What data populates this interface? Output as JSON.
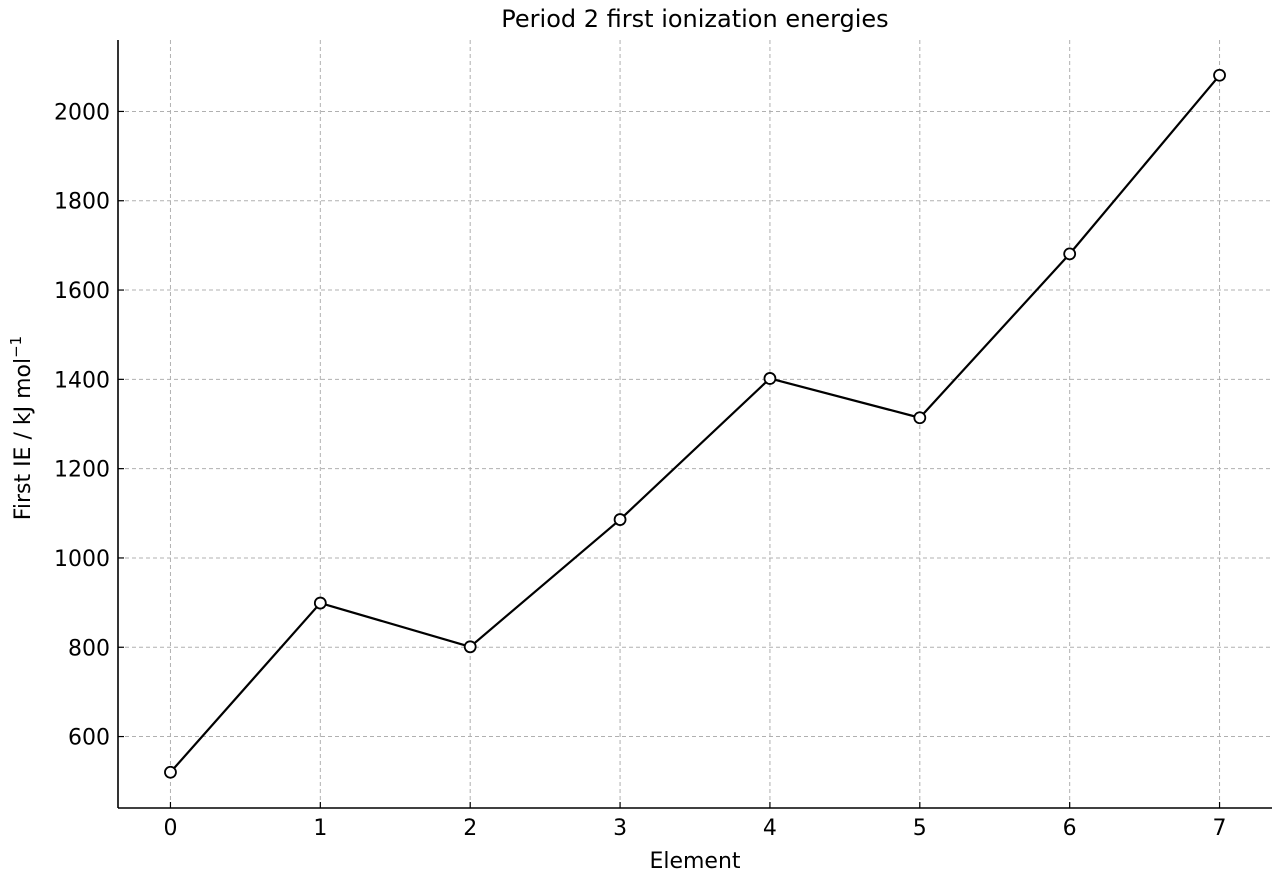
{
  "chart_data": {
    "type": "line",
    "title": "Period 2 first ionization energies",
    "xlabel": "Element",
    "ylabel": "First IE / kJ mol",
    "ylabel_superscript": "−1",
    "x": [
      0,
      1,
      2,
      3,
      4,
      5,
      6,
      7
    ],
    "series": [
      {
        "values": [
          520,
          899,
          801,
          1086,
          1402,
          1314,
          1681,
          2081
        ]
      }
    ],
    "x_ticks": [
      0,
      1,
      2,
      3,
      4,
      5,
      6,
      7
    ],
    "y_ticks": [
      600,
      800,
      1000,
      1200,
      1400,
      1600,
      1800,
      2000
    ],
    "xlim": [
      -0.35,
      7.35
    ],
    "ylim": [
      440,
      2160
    ],
    "grid": true,
    "line_color": "#000000",
    "marker_fill": "#ffffff",
    "grid_color": "#b0b0b0"
  }
}
